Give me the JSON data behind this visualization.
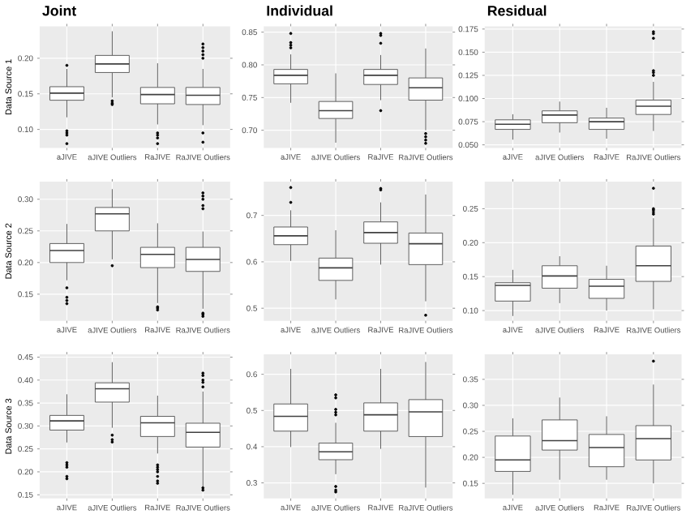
{
  "chart_data": [
    {
      "type": "box",
      "title": "Joint",
      "ylabel": "Data Source 1",
      "categories": [
        "aJIVE",
        "aJIVE Outliers",
        "RaJIVE",
        "RaJIVE Outliers"
      ],
      "grid": true,
      "ylim": [
        0.074,
        0.245
      ],
      "yticks": [
        {
          "value": 0.1,
          "label": "0.10"
        },
        {
          "value": 0.15,
          "label": "0.15"
        },
        {
          "value": 0.2,
          "label": "0.20"
        }
      ],
      "boxes": [
        {
          "low": 0.117,
          "q1": 0.141,
          "median": 0.151,
          "q3": 0.16,
          "high": 0.185,
          "outliers": [
            0.19,
            0.098,
            0.095,
            0.092,
            0.08
          ]
        },
        {
          "low": 0.145,
          "q1": 0.18,
          "median": 0.192,
          "q3": 0.204,
          "high": 0.238,
          "outliers": [
            0.14,
            0.137,
            0.135
          ]
        },
        {
          "low": 0.107,
          "q1": 0.136,
          "median": 0.149,
          "q3": 0.159,
          "high": 0.193,
          "outliers": [
            0.095,
            0.092,
            0.088,
            0.08
          ]
        },
        {
          "low": 0.106,
          "q1": 0.135,
          "median": 0.148,
          "q3": 0.159,
          "high": 0.185,
          "outliers": [
            0.22,
            0.215,
            0.21,
            0.205,
            0.2,
            0.095,
            0.082
          ]
        }
      ]
    },
    {
      "type": "box",
      "title": "Individual",
      "categories": [
        "aJIVE",
        "aJIVE Outliers",
        "RaJIVE",
        "RaJIVE Outliers"
      ],
      "grid": true,
      "ylim": [
        0.673,
        0.859
      ],
      "yticks": [
        {
          "value": 0.7,
          "label": "0.70"
        },
        0.75,
        {
          "value": 0.8,
          "label": "0.80"
        },
        0.85
      ],
      "boxes": [
        {
          "low": 0.742,
          "q1": 0.771,
          "median": 0.784,
          "q3": 0.793,
          "high": 0.816,
          "outliers": [
            0.848,
            0.834,
            0.83,
            0.826
          ]
        },
        {
          "low": 0.681,
          "q1": 0.718,
          "median": 0.73,
          "q3": 0.744,
          "high": 0.787
        },
        {
          "low": 0.746,
          "q1": 0.77,
          "median": 0.784,
          "q3": 0.793,
          "high": 0.815,
          "outliers": [
            0.848,
            0.845,
            0.833,
            0.73
          ]
        },
        {
          "low": 0.7,
          "q1": 0.746,
          "median": 0.765,
          "q3": 0.78,
          "high": 0.825,
          "outliers": [
            0.695,
            0.69,
            0.685,
            0.68
          ]
        }
      ]
    },
    {
      "type": "box",
      "title": "Residual",
      "categories": [
        "aJIVE",
        "aJIVE Outliers",
        "RaJIVE",
        "RaJIVE Outliers"
      ],
      "grid": true,
      "ylim": [
        0.0467,
        0.178
      ],
      "yticks": [
        {
          "value": 0.05,
          "label": "0.050"
        },
        0.075,
        {
          "value": 0.1,
          "label": "0.100"
        },
        0.125,
        {
          "value": 0.15,
          "label": "0.150"
        },
        0.175
      ],
      "boxes": [
        {
          "low": 0.0556,
          "q1": 0.0667,
          "median": 0.0722,
          "q3": 0.077,
          "high": 0.083
        },
        {
          "low": 0.0633,
          "q1": 0.0739,
          "median": 0.0822,
          "q3": 0.0867,
          "high": 0.0967
        },
        {
          "low": 0.0567,
          "q1": 0.0667,
          "median": 0.075,
          "q3": 0.0789,
          "high": 0.09
        },
        {
          "low": 0.065,
          "q1": 0.0828,
          "median": 0.0917,
          "q3": 0.0983,
          "high": 0.118,
          "outliers": [
            0.125,
            0.128,
            0.13,
            0.165,
            0.17,
            0.172
          ]
        }
      ]
    },
    {
      "type": "box",
      "ylabel": "Data Source 2",
      "categories": [
        "aJIVE",
        "aJIVE Outliers",
        "RaJIVE",
        "RaJIVE Outliers"
      ],
      "grid": true,
      "ylim": [
        0.108,
        0.328
      ],
      "yticks": [
        0.15,
        {
          "value": 0.2,
          "label": "0.20"
        },
        0.25,
        {
          "value": 0.3,
          "label": "0.30"
        }
      ],
      "boxes": [
        {
          "low": 0.172,
          "q1": 0.2,
          "median": 0.219,
          "q3": 0.23,
          "high": 0.261,
          "outliers": [
            0.16,
            0.145,
            0.14,
            0.135
          ]
        },
        {
          "low": 0.205,
          "q1": 0.25,
          "median": 0.277,
          "q3": 0.287,
          "high": 0.316,
          "outliers": [
            0.195
          ]
        },
        {
          "low": 0.136,
          "q1": 0.192,
          "median": 0.213,
          "q3": 0.224,
          "high": 0.262,
          "outliers": [
            0.13,
            0.128,
            0.125
          ]
        },
        {
          "low": 0.127,
          "q1": 0.186,
          "median": 0.205,
          "q3": 0.224,
          "high": 0.249,
          "outliers": [
            0.31,
            0.305,
            0.3,
            0.29,
            0.285,
            0.12,
            0.118,
            0.115
          ]
        }
      ]
    },
    {
      "type": "box",
      "categories": [
        "aJIVE",
        "aJIVE Outliers",
        "RaJIVE",
        "RaJIVE Outliers"
      ],
      "grid": true,
      "ylim": [
        0.473,
        0.773
      ],
      "yticks": [
        0.5,
        0.6,
        0.7
      ],
      "boxes": [
        {
          "low": 0.602,
          "q1": 0.637,
          "median": 0.656,
          "q3": 0.675,
          "high": 0.711,
          "outliers": [
            0.76,
            0.728
          ]
        },
        {
          "low": 0.519,
          "q1": 0.56,
          "median": 0.587,
          "q3": 0.608,
          "high": 0.668
        },
        {
          "low": 0.594,
          "q1": 0.64,
          "median": 0.663,
          "q3": 0.686,
          "high": 0.728,
          "outliers": [
            0.758,
            0.755
          ]
        },
        {
          "low": 0.515,
          "q1": 0.594,
          "median": 0.639,
          "q3": 0.662,
          "high": 0.745,
          "outliers": [
            0.485
          ]
        }
      ]
    },
    {
      "type": "box",
      "categories": [
        "aJIVE",
        "aJIVE Outliers",
        "RaJIVE",
        "RaJIVE Outliers"
      ],
      "grid": true,
      "ylim": [
        0.085,
        0.29
      ],
      "yticks": [
        {
          "value": 0.1,
          "label": "0.10"
        },
        0.15,
        {
          "value": 0.2,
          "label": "0.20"
        },
        0.25
      ],
      "boxes": [
        {
          "low": 0.092,
          "q1": 0.114,
          "median": 0.137,
          "q3": 0.141,
          "high": 0.16
        },
        {
          "low": 0.111,
          "q1": 0.133,
          "median": 0.151,
          "q3": 0.166,
          "high": 0.18
        },
        {
          "low": 0.1,
          "q1": 0.118,
          "median": 0.136,
          "q3": 0.146,
          "high": 0.166
        },
        {
          "low": 0.102,
          "q1": 0.143,
          "median": 0.166,
          "q3": 0.195,
          "high": 0.236,
          "outliers": [
            0.28,
            0.25,
            0.248,
            0.245,
            0.242
          ]
        }
      ]
    },
    {
      "type": "box",
      "ylabel": "Data Source 3",
      "categories": [
        "aJIVE",
        "aJIVE Outliers",
        "RaJIVE",
        "RaJIVE Outliers"
      ],
      "grid": true,
      "ylim": [
        0.142,
        0.456
      ],
      "yticks": [
        0.15,
        {
          "value": 0.2,
          "label": "0.20"
        },
        0.25,
        {
          "value": 0.3,
          "label": "0.30"
        },
        0.35,
        {
          "value": 0.4,
          "label": "0.40"
        },
        0.45
      ],
      "boxes": [
        {
          "low": 0.264,
          "q1": 0.291,
          "median": 0.311,
          "q3": 0.323,
          "high": 0.369,
          "outliers": [
            0.22,
            0.215,
            0.21,
            0.19,
            0.185
          ]
        },
        {
          "low": 0.296,
          "q1": 0.352,
          "median": 0.381,
          "q3": 0.394,
          "high": 0.439,
          "outliers": [
            0.28,
            0.27,
            0.265
          ]
        },
        {
          "low": 0.24,
          "q1": 0.277,
          "median": 0.307,
          "q3": 0.321,
          "high": 0.366,
          "outliers": [
            0.215,
            0.21,
            0.205,
            0.2,
            0.19,
            0.18,
            0.175
          ]
        },
        {
          "low": 0.168,
          "q1": 0.254,
          "median": 0.286,
          "q3": 0.306,
          "high": 0.375,
          "outliers": [
            0.415,
            0.41,
            0.4,
            0.395,
            0.385,
            0.165,
            0.16
          ]
        }
      ]
    },
    {
      "type": "box",
      "categories": [
        "aJIVE",
        "aJIVE Outliers",
        "RaJIVE",
        "RaJIVE Outliers"
      ],
      "grid": true,
      "ylim": [
        0.257,
        0.655
      ],
      "yticks": [
        0.3,
        0.4,
        0.5,
        0.6
      ],
      "boxes": [
        {
          "low": 0.399,
          "q1": 0.443,
          "median": 0.484,
          "q3": 0.518,
          "high": 0.615
        },
        {
          "low": 0.324,
          "q1": 0.364,
          "median": 0.386,
          "q3": 0.41,
          "high": 0.466,
          "outliers": [
            0.543,
            0.535,
            0.503,
            0.495,
            0.488,
            0.29,
            0.28,
            0.275
          ]
        },
        {
          "low": 0.394,
          "q1": 0.443,
          "median": 0.488,
          "q3": 0.521,
          "high": 0.615
        },
        {
          "low": 0.287,
          "q1": 0.428,
          "median": 0.496,
          "q3": 0.53,
          "high": 0.634
        }
      ]
    },
    {
      "type": "box",
      "categories": [
        "aJIVE",
        "aJIVE Outliers",
        "RaJIVE",
        "RaJIVE Outliers"
      ],
      "grid": true,
      "ylim": [
        0.121,
        0.398
      ],
      "yticks": [
        0.15,
        {
          "value": 0.2,
          "label": "0.20"
        },
        0.25,
        {
          "value": 0.3,
          "label": "0.30"
        },
        0.35
      ],
      "boxes": [
        {
          "low": 0.128,
          "q1": 0.173,
          "median": 0.195,
          "q3": 0.241,
          "high": 0.275
        },
        {
          "low": 0.157,
          "q1": 0.214,
          "median": 0.232,
          "q3": 0.272,
          "high": 0.315
        },
        {
          "low": 0.157,
          "q1": 0.182,
          "median": 0.219,
          "q3": 0.244,
          "high": 0.279
        },
        {
          "low": 0.15,
          "q1": 0.195,
          "median": 0.236,
          "q3": 0.261,
          "high": 0.34,
          "outliers": [
            0.385
          ]
        }
      ]
    }
  ]
}
